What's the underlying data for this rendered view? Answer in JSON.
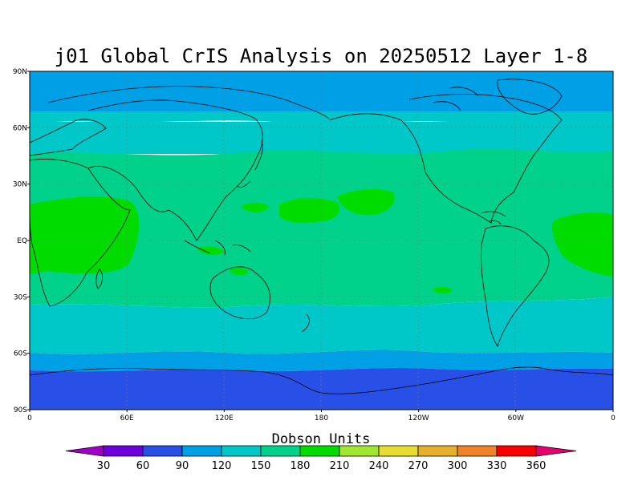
{
  "title": "j01 Global CrIS Analysis on 20250512 Layer 1-8",
  "map": {
    "lat_labels": [
      "90N",
      "60N",
      "30N",
      "EQ",
      "30S",
      "60S",
      "90S"
    ],
    "lon_labels": [
      "0",
      "60E",
      "120E",
      "180",
      "120W",
      "60W",
      "0"
    ]
  },
  "colorbar": {
    "title": "Dobson Units",
    "labels": [
      "30",
      "60",
      "90",
      "120",
      "150",
      "180",
      "210",
      "240",
      "270",
      "300",
      "330",
      "360"
    ],
    "colors": [
      "#a000c8",
      "#6e00dc",
      "#2850e6",
      "#00a0e6",
      "#00c8c8",
      "#00d28c",
      "#00dc00",
      "#a0e632",
      "#e6dc32",
      "#e6af2d",
      "#f08228",
      "#fa0000",
      "#e6006e"
    ]
  }
}
